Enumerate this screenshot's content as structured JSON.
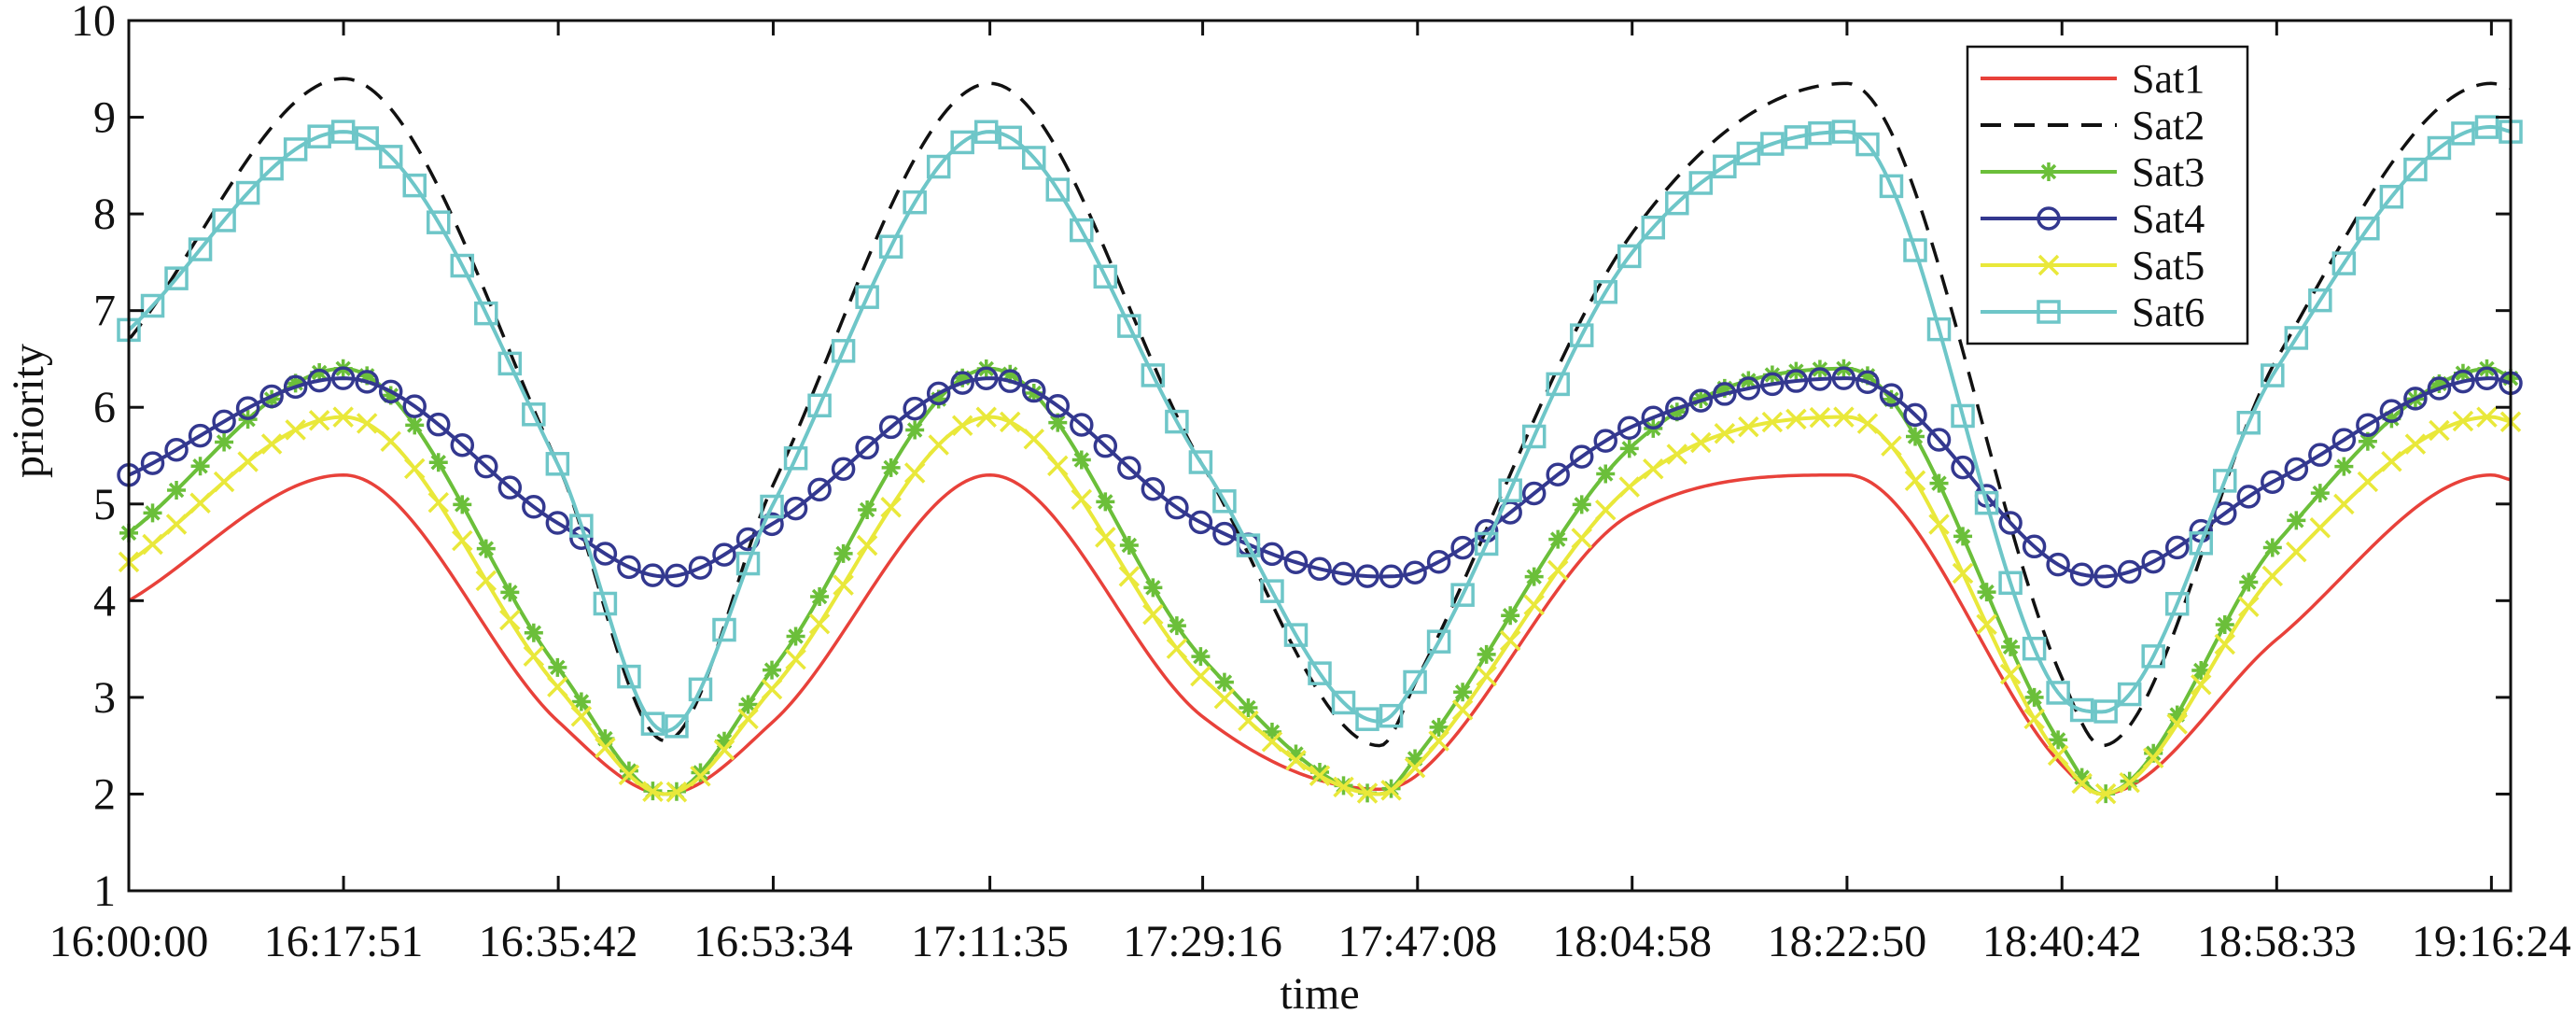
{
  "chart_data": {
    "type": "line",
    "title": "",
    "xlabel": "time",
    "ylabel": "priority",
    "ylim": [
      1,
      10
    ],
    "yticks": [
      1,
      2,
      3,
      4,
      5,
      6,
      7,
      8,
      9,
      10
    ],
    "xlim_minutes": [
      0,
      198
    ],
    "xticks": [
      {
        "label": "16:00:00",
        "minute": 0
      },
      {
        "label": "16:17:51",
        "minute": 17.85
      },
      {
        "label": "16:35:42",
        "minute": 35.7
      },
      {
        "label": "16:53:34",
        "minute": 53.57
      },
      {
        "label": "17:11:35",
        "minute": 71.58
      },
      {
        "label": "17:29:16",
        "minute": 89.27
      },
      {
        "label": "17:47:08",
        "minute": 107.13
      },
      {
        "label": "18:04:58",
        "minute": 124.97
      },
      {
        "label": "18:22:50",
        "minute": 142.83
      },
      {
        "label": "18:40:42",
        "minute": 160.7
      },
      {
        "label": "18:58:33",
        "minute": 178.55
      },
      {
        "label": "19:16:24",
        "minute": 196.4
      }
    ],
    "grid": false,
    "legend_position": "top-right",
    "series": [
      {
        "name": "Sat1",
        "color": "#e8413a",
        "dash": "",
        "marker": "none",
        "x": [
          0,
          17.85,
          35.7,
          44.6,
          53.57,
          71.58,
          89.27,
          104,
          107.13,
          124.97,
          142.83,
          160.7,
          164,
          178.55,
          196.4,
          198
        ],
        "y": [
          4.0,
          5.3,
          2.75,
          2.0,
          2.75,
          5.3,
          2.8,
          2.05,
          2.2,
          4.9,
          5.3,
          2.3,
          2.0,
          3.6,
          5.3,
          5.25
        ]
      },
      {
        "name": "Sat2",
        "color": "#111111",
        "dash": "22,14",
        "marker": "none",
        "x": [
          0,
          17.85,
          35.7,
          44.6,
          53.57,
          71.58,
          89.27,
          104,
          107.13,
          124.97,
          142.83,
          160.7,
          164,
          178.55,
          196.4,
          198
        ],
        "y": [
          6.7,
          9.4,
          5.4,
          2.55,
          5.2,
          9.35,
          5.4,
          2.5,
          3.2,
          7.8,
          9.35,
          3.2,
          2.5,
          6.5,
          9.35,
          9.3
        ]
      },
      {
        "name": "Sat3",
        "color": "#6bbf3a",
        "dash": "",
        "marker": "star",
        "x": [
          0,
          17.85,
          35.7,
          44.6,
          53.57,
          71.58,
          89.27,
          104,
          107.13,
          124.97,
          142.83,
          160.7,
          164,
          178.55,
          196.4,
          198
        ],
        "y": [
          4.7,
          6.4,
          3.3,
          2.0,
          3.3,
          6.4,
          3.4,
          2.0,
          2.4,
          5.6,
          6.4,
          2.5,
          2.0,
          4.6,
          6.4,
          6.3
        ]
      },
      {
        "name": "Sat4",
        "color": "#33388f",
        "dash": "",
        "marker": "circle",
        "x": [
          0,
          17.85,
          35.7,
          44.6,
          53.57,
          71.58,
          89.27,
          104,
          107.13,
          124.97,
          142.83,
          160.7,
          164,
          178.55,
          196.4,
          198
        ],
        "y": [
          5.3,
          6.3,
          4.8,
          4.25,
          4.8,
          6.3,
          4.8,
          4.25,
          4.3,
          5.8,
          6.3,
          4.35,
          4.25,
          5.25,
          6.3,
          6.25
        ]
      },
      {
        "name": "Sat5",
        "color": "#e9e83a",
        "dash": "",
        "marker": "x",
        "x": [
          0,
          17.85,
          35.7,
          44.6,
          53.57,
          71.58,
          89.27,
          104,
          107.13,
          124.97,
          142.83,
          160.7,
          164,
          178.55,
          196.4,
          198
        ],
        "y": [
          4.4,
          5.9,
          3.1,
          2.0,
          3.1,
          5.9,
          3.2,
          2.0,
          2.3,
          5.2,
          5.9,
          2.35,
          2.0,
          4.3,
          5.9,
          5.85
        ]
      },
      {
        "name": "Sat6",
        "color": "#6ec6c8",
        "dash": "",
        "marker": "square",
        "x": [
          0,
          17.85,
          35.7,
          44.6,
          53.57,
          71.58,
          89.27,
          104,
          107.13,
          124.97,
          142.83,
          160.7,
          164,
          178.55,
          196.4,
          198
        ],
        "y": [
          6.8,
          8.85,
          5.4,
          2.65,
          5.0,
          8.85,
          5.4,
          2.75,
          3.2,
          7.6,
          8.85,
          3.0,
          2.85,
          6.4,
          8.9,
          8.85
        ]
      }
    ]
  }
}
